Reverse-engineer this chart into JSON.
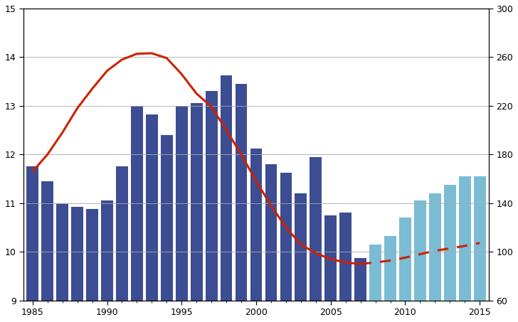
{
  "bars_years": [
    1985,
    1986,
    1987,
    1988,
    1989,
    1990,
    1991,
    1992,
    1993,
    1994,
    1995,
    1996,
    1997,
    1998,
    1999,
    2000,
    2001,
    2002,
    2003,
    2004,
    2005,
    2006,
    2007,
    2008,
    2009,
    2010,
    2011,
    2012,
    2013,
    2014,
    2015
  ],
  "bars_right": [
    170,
    158,
    140,
    137,
    135,
    142,
    170,
    220,
    213,
    196,
    220,
    222,
    232,
    245,
    238,
    185,
    172,
    165,
    148,
    178,
    130,
    132,
    95,
    106,
    113,
    128,
    142,
    148,
    155,
    162,
    162
  ],
  "dark_end_year": 2007,
  "bar_color_dark": "#3C4D94",
  "bar_color_light": "#7BBCD5",
  "line_solid_years": [
    1985,
    1986,
    1987,
    1988,
    1989,
    1990,
    1991,
    1992,
    1993,
    1994,
    1995,
    1996,
    1997,
    1998,
    1999,
    2000,
    2001,
    2002,
    2003,
    2004,
    2005,
    2006,
    2007
  ],
  "line_solid_values": [
    11.65,
    12.0,
    12.45,
    12.95,
    13.35,
    13.72,
    13.95,
    14.07,
    14.08,
    13.98,
    13.65,
    13.25,
    12.98,
    12.5,
    12.0,
    11.45,
    10.95,
    10.5,
    10.15,
    9.97,
    9.85,
    9.78,
    9.75
  ],
  "line_dashed_years": [
    2007,
    2008,
    2009,
    2010,
    2011,
    2012,
    2013,
    2014,
    2015
  ],
  "line_dashed_values": [
    9.75,
    9.78,
    9.82,
    9.88,
    9.95,
    10.02,
    10.07,
    10.12,
    10.18
  ],
  "line_color": "#CC2200",
  "line_width": 2.2,
  "ylim_left": [
    9,
    15
  ],
  "ylim_right": [
    60,
    300
  ],
  "yticks_left": [
    9,
    10,
    11,
    12,
    13,
    14,
    15
  ],
  "yticks_right": [
    60,
    100,
    140,
    180,
    220,
    260,
    300
  ],
  "xticks": [
    1985,
    1990,
    1995,
    2000,
    2005,
    2010,
    2015
  ],
  "xlim": [
    1984.4,
    2015.6
  ],
  "background_color": "#FFFFFF",
  "grid_color": "#AAAAAA",
  "bar_width": 0.8
}
